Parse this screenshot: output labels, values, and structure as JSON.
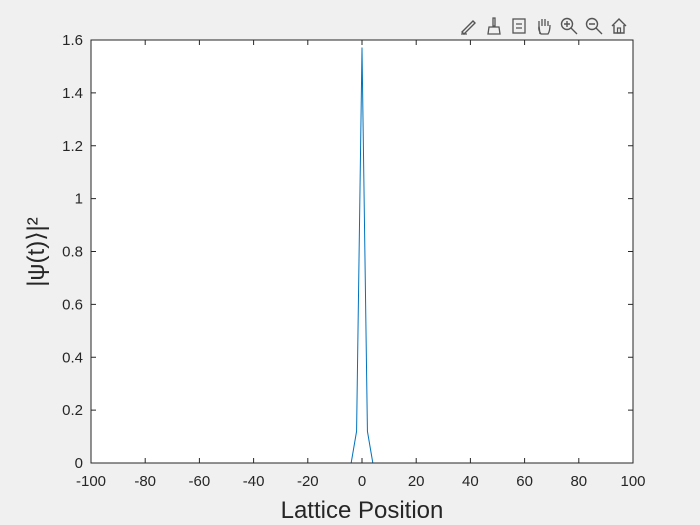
{
  "toolbar": {
    "items": [
      {
        "name": "edit-plot-icon"
      },
      {
        "name": "brush-icon"
      },
      {
        "name": "data-tips-icon"
      },
      {
        "name": "pan-hand-icon"
      },
      {
        "name": "zoom-in-icon"
      },
      {
        "name": "zoom-out-icon"
      },
      {
        "name": "home-icon"
      }
    ]
  },
  "colors": {
    "figure_background": "#f0f0f0",
    "axes_background": "#ffffff",
    "line": "#0072bd",
    "axis": "#262626"
  },
  "chart_data": {
    "type": "line",
    "title": "",
    "xlabel": "Lattice Position",
    "ylabel": "|ψ(t)⟩|²",
    "xlim": [
      -100,
      100
    ],
    "ylim": [
      0,
      1.6
    ],
    "xticks": [
      -100,
      -80,
      -60,
      -40,
      -20,
      0,
      20,
      40,
      60,
      80,
      100
    ],
    "xtick_labels": [
      "-100",
      "-80",
      "-60",
      "-40",
      "-20",
      "0",
      "20",
      "40",
      "60",
      "80",
      "100"
    ],
    "yticks": [
      0,
      0.2,
      0.4,
      0.6,
      0.8,
      1,
      1.2,
      1.4,
      1.6
    ],
    "ytick_labels": [
      "0",
      "0.2",
      "0.4",
      "0.6",
      "0.8",
      "1",
      "1.2",
      "1.4",
      "1.6"
    ],
    "grid": false,
    "series": [
      {
        "x": [
          -100,
          -4,
          -2,
          0,
          2,
          4,
          100
        ],
        "values": [
          0,
          0,
          0.12,
          1.57,
          0.12,
          0,
          0
        ]
      }
    ]
  }
}
